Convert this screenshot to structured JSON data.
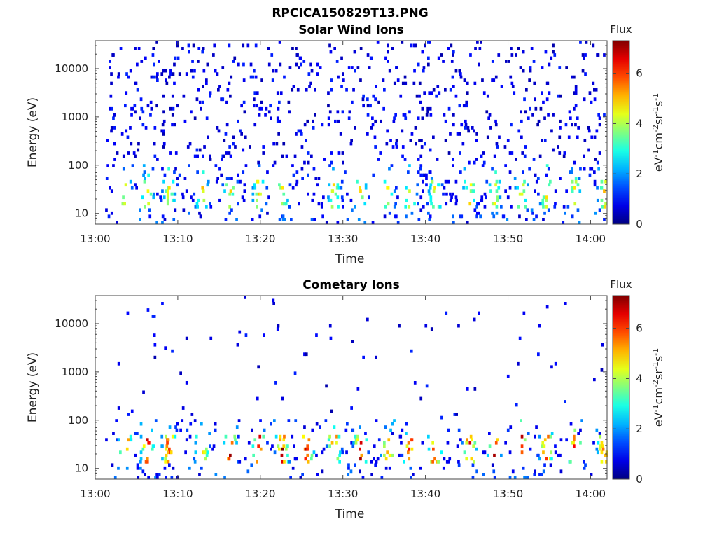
{
  "figure": {
    "filename": "RPCICA150829T13.PNG"
  },
  "chart_data": [
    {
      "type": "heatmap",
      "title": "Solar Wind Ions",
      "xlabel": "Time",
      "ylabel": "Energy (eV)",
      "x_ticks": [
        "13:00",
        "13:10",
        "13:20",
        "13:30",
        "13:40",
        "13:50",
        "14:00"
      ],
      "x_range": [
        "13:00",
        "14:02"
      ],
      "y_scale": "log",
      "y_ticks": [
        "10",
        "100",
        "1000",
        "10000"
      ],
      "y_range": [
        6,
        38000
      ],
      "colorbar": {
        "label": "Flux",
        "unit_label": "eV-1cm-2sr-1s-1",
        "range": [
          0,
          7.3
        ],
        "ticks": [
          "0",
          "2",
          "4",
          "6"
        ]
      },
      "colormap": "jet",
      "peak_flux_approx": 5.0,
      "main_band_energy_eV": [
        15,
        45
      ],
      "bursts_minutes": [
        3.5,
        6.2,
        8.8,
        12.8,
        16.2,
        19.7,
        22.5,
        28.8,
        32.0,
        35.3,
        38.0,
        41.0,
        45.2,
        48.2,
        51.5,
        54.5,
        58.0,
        61.5
      ]
    },
    {
      "type": "heatmap",
      "title": "Cometary Ions",
      "xlabel": "Time",
      "ylabel": "Energy (eV)",
      "x_ticks": [
        "13:00",
        "13:10",
        "13:20",
        "13:30",
        "13:40",
        "13:50",
        "14:00"
      ],
      "x_range": [
        "13:00",
        "14:02"
      ],
      "y_scale": "log",
      "y_ticks": [
        "10",
        "100",
        "1000",
        "10000"
      ],
      "y_range": [
        6,
        38000
      ],
      "colorbar": {
        "label": "Flux",
        "unit_label": "eV-1cm-2sr-1s-1",
        "range": [
          0,
          7.3
        ],
        "ticks": [
          "0",
          "2",
          "4",
          "6"
        ]
      },
      "colormap": "jet",
      "peak_flux_approx": 7.2,
      "main_band_energy_eV": [
        15,
        45
      ],
      "bursts_minutes": [
        3.5,
        6.2,
        8.8,
        12.8,
        16.2,
        19.7,
        22.5,
        25.5,
        28.8,
        32.0,
        35.3,
        38.0,
        41.0,
        45.2,
        48.2,
        51.5,
        54.5,
        58.0,
        61.5
      ]
    }
  ]
}
